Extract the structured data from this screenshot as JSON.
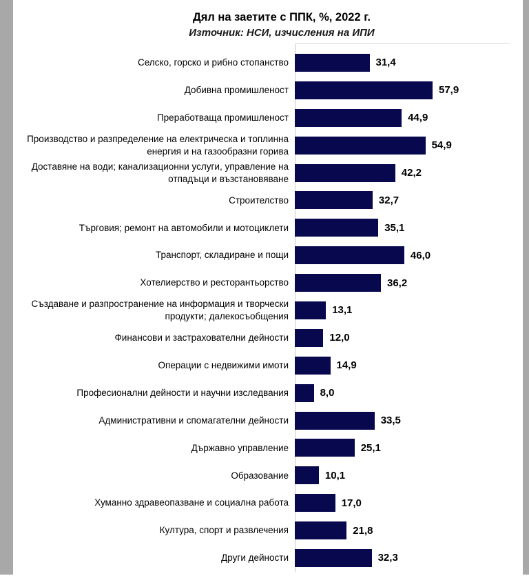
{
  "page": {
    "background_color": "#ffffff",
    "edge_strip_color": "#a8a8a8"
  },
  "chart_data": {
    "type": "bar",
    "orientation": "horizontal",
    "title": "Дял на заетите с ППК, %, 2022 г.",
    "subtitle": "Източник: НСИ, изчисления на ИПИ",
    "bar_color": "#08084e",
    "axis_color": "#c9c9c9",
    "grid": false,
    "legend": false,
    "xlim": [
      0,
      60
    ],
    "value_decimal_separator": ",",
    "categories": [
      "Селско, горско и рибно стопанство",
      "Добивна промишленост",
      "Преработваща промишленост",
      "Производство и разпределение на електрическа и топлинна енергия и на газообразни горива",
      "Доставяне на води; канализационни услуги, управление на отпадъци и възстановяване",
      "Строителство",
      "Търговия; ремонт на автомобили и мотоциклети",
      "Транспорт, складиране и пощи",
      "Хотелиерство и ресторантьорство",
      "Създаване и разпространение на информация и творчески продукти; далекосъобщения",
      "Финансови и застрахователни дейности",
      "Операции с недвижими имоти",
      "Професионални дейности и научни изследвания",
      "Административни и спомагателни дейности",
      "Държавно управление",
      "Образование",
      "Хуманно здравеопазване и социална работа",
      "Култура, спорт и развлечения",
      "Други дейности"
    ],
    "values": [
      31.4,
      57.9,
      44.9,
      54.9,
      42.2,
      32.7,
      35.1,
      46.0,
      36.2,
      13.1,
      12.0,
      14.9,
      8.0,
      33.5,
      25.1,
      10.1,
      17.0,
      21.8,
      32.3
    ],
    "value_labels": [
      "31,4",
      "57,9",
      "44,9",
      "54,9",
      "42,2",
      "32,7",
      "35,1",
      "46,0",
      "36,2",
      "13,1",
      "12,0",
      "14,9",
      "8,0",
      "33,5",
      "25,1",
      "10,1",
      "17,0",
      "21,8",
      "32,3"
    ]
  }
}
